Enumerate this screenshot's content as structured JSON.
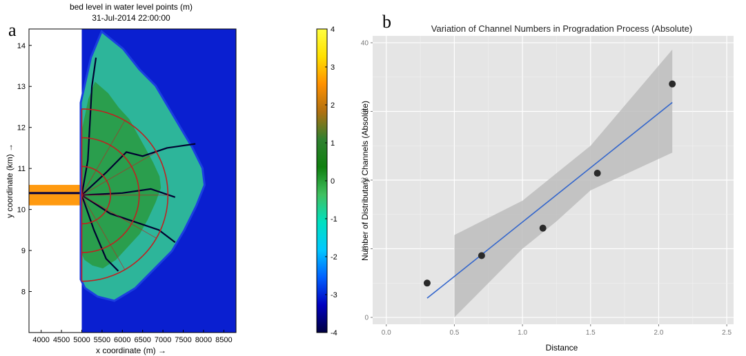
{
  "chart_data": [
    {
      "panel_label": "a",
      "type": "heatmap",
      "title": "bed level in water level points (m)",
      "subtitle": "31-Jul-2014 22:00:00",
      "xlabel": "x coordinate (m) →",
      "ylabel": "y coordinate (km) →",
      "x_ticks": [
        4000,
        4500,
        5000,
        5500,
        6000,
        6500,
        7000,
        7500,
        8000,
        8500
      ],
      "y_ticks": [
        8,
        9,
        10,
        11,
        12,
        13,
        14
      ],
      "xlim": [
        3700,
        8800
      ],
      "ylim": [
        7.0,
        14.4
      ],
      "colorbar": {
        "ticks": [
          4,
          3,
          2,
          1,
          0,
          -1,
          -2,
          -3,
          -4
        ],
        "range": [
          -4,
          4
        ],
        "colors": [
          "#000040",
          "#0000c0",
          "#0060ff",
          "#00c8ff",
          "#00e0c0",
          "#40c060",
          "#108010",
          "#308030",
          "#b07010",
          "#ff9000",
          "#ffe000",
          "#ffff40"
        ]
      },
      "land_color": "#ffffff",
      "deep_water_color": "#0a1fd0",
      "channel_inlet": {
        "x_range": [
          3700,
          5000
        ],
        "y_range": [
          10.1,
          10.6
        ]
      },
      "delta_apex": {
        "x": 5000,
        "y": 10.35
      },
      "radial_lines_radii_km": [
        0.7,
        1.4,
        2.1
      ],
      "radial_lines_color": "#c02020",
      "delta_edge_lobe": [
        [
          5000,
          12.6
        ],
        [
          5250,
          13.7
        ],
        [
          5500,
          14.3
        ],
        [
          6000,
          13.9
        ],
        [
          6400,
          13.4
        ],
        [
          6800,
          13.0
        ],
        [
          7100,
          12.5
        ],
        [
          7400,
          12.0
        ],
        [
          7700,
          11.5
        ],
        [
          7950,
          11.0
        ],
        [
          8000,
          10.6
        ],
        [
          7800,
          10.1
        ],
        [
          7500,
          9.5
        ],
        [
          7200,
          9.0
        ],
        [
          6800,
          8.6
        ],
        [
          6300,
          8.1
        ],
        [
          5800,
          7.8
        ],
        [
          5400,
          7.9
        ],
        [
          5100,
          8.1
        ],
        [
          5000,
          8.3
        ]
      ]
    },
    {
      "panel_label": "b",
      "type": "scatter",
      "title": "Variation of Channel Numbers in Progradation Process (Absolute)",
      "xlabel": "Distance",
      "ylabel": "Number of Distributary Channels (Absolute)",
      "xlim": [
        -0.1,
        2.55
      ],
      "ylim": [
        -1,
        41
      ],
      "x_ticks": [
        0.0,
        0.5,
        1.0,
        1.5,
        2.0,
        2.5
      ],
      "x_tick_labels": [
        "0.0",
        "0.5",
        "1.0",
        "1.5",
        "2.0",
        "2.5"
      ],
      "y_ticks": [
        0,
        10,
        20,
        30,
        40
      ],
      "y_tick_labels": [
        "0",
        "10",
        "20",
        "30",
        "40"
      ],
      "grid": true,
      "background": "#e5e5e5",
      "points": [
        {
          "x": 0.3,
          "y": 5
        },
        {
          "x": 0.7,
          "y": 9
        },
        {
          "x": 1.15,
          "y": 13
        },
        {
          "x": 1.55,
          "y": 21
        },
        {
          "x": 2.1,
          "y": 34
        }
      ],
      "fit_line": {
        "x": [
          0.3,
          2.1
        ],
        "y": [
          2.8,
          31.3
        ],
        "color": "#3366cc"
      },
      "confidence_band": {
        "x": [
          0.5,
          1.0,
          1.25,
          1.5,
          2.1
        ],
        "upper": [
          12.0,
          17.0,
          21.0,
          25.0,
          39.0
        ],
        "lower": [
          0.0,
          10.0,
          14.0,
          18.5,
          24.0
        ],
        "color": "#bdbdbd"
      }
    }
  ]
}
